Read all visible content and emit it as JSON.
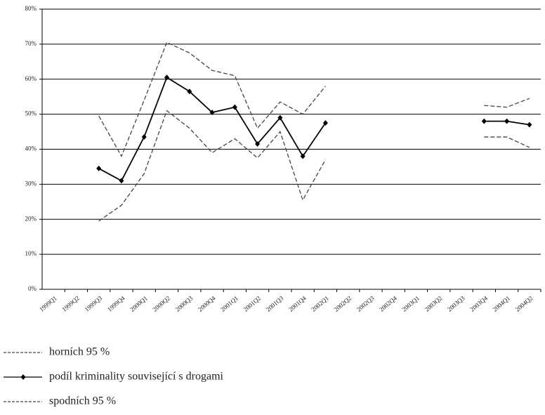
{
  "chart_data": {
    "type": "line",
    "categories": [
      "1999Q1",
      "1999Q2",
      "1999Q3",
      "1999Q4",
      "2000Q1",
      "2000Q2",
      "2000Q3",
      "2000Q4",
      "2001Q1",
      "2001Q2",
      "2001Q3",
      "2001Q4",
      "2002Q1",
      "2002Q2",
      "2002Q3",
      "2002Q4",
      "2003Q1",
      "2003Q2",
      "2003Q3",
      "2003Q4",
      "2004Q1",
      "2004Q2"
    ],
    "series": [
      {
        "name": "horních 95 %",
        "color": "#444444",
        "dashed": true,
        "values": [
          null,
          null,
          49.5,
          38,
          54,
          70.5,
          67.5,
          62.5,
          61,
          46,
          53.5,
          50,
          58,
          null,
          null,
          null,
          null,
          null,
          null,
          52.5,
          52,
          54.5
        ]
      },
      {
        "name": "podíl kriminality související s drogami",
        "color": "#000000",
        "dashed": false,
        "marker": "diamond",
        "values": [
          null,
          null,
          34.5,
          31,
          43.5,
          60.5,
          56.5,
          50.5,
          52,
          41.5,
          49,
          38,
          47.5,
          null,
          null,
          null,
          null,
          null,
          null,
          48,
          48,
          47
        ]
      },
      {
        "name": "spodních 95 %",
        "color": "#444444",
        "dashed": true,
        "values": [
          null,
          null,
          19.5,
          24,
          33,
          51,
          46,
          39,
          43,
          37.5,
          45,
          25.5,
          37,
          null,
          null,
          null,
          null,
          null,
          null,
          43.5,
          43.5,
          40.5
        ]
      }
    ],
    "ylim": [
      0,
      80
    ],
    "yticks": [
      {
        "value": 0,
        "label": "0%"
      },
      {
        "value": 10,
        "label": "10%"
      },
      {
        "value": 20,
        "label": "20%"
      },
      {
        "value": 30,
        "label": "30%"
      },
      {
        "value": 40,
        "label": "40%"
      },
      {
        "value": 50,
        "label": "50%"
      },
      {
        "value": 60,
        "label": "60%"
      },
      {
        "value": 70,
        "label": "70%"
      },
      {
        "value": 80,
        "label": "80%"
      }
    ],
    "grid": true,
    "legend": "bottom-left"
  }
}
